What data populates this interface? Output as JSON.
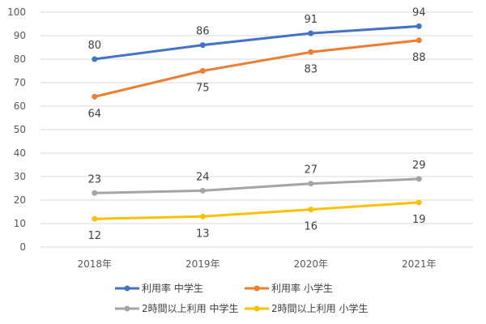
{
  "chart_data": {
    "type": "line",
    "title": "",
    "xlabel": "",
    "ylabel": "",
    "categories": [
      "2018年",
      "2019年",
      "2020年",
      "2021年"
    ],
    "ylim": [
      0,
      100
    ],
    "yticks": [
      0,
      10,
      20,
      30,
      40,
      50,
      60,
      70,
      80,
      90,
      100
    ],
    "grid": true,
    "legend_position": "bottom",
    "series": [
      {
        "name": "利用率 中学生",
        "color": "#4472C4",
        "values": [
          80,
          86,
          91,
          94
        ],
        "labels": [
          "80",
          "86",
          "91",
          "94"
        ],
        "label_pos": "above"
      },
      {
        "name": "利用率 小学生",
        "color": "#ED7D31",
        "values": [
          64,
          75,
          83,
          88
        ],
        "labels": [
          "64",
          "75",
          "83",
          "88"
        ],
        "label_pos": "below"
      },
      {
        "name": "2時間以上利用 中学生",
        "color": "#A5A5A5",
        "values": [
          23,
          24,
          27,
          29
        ],
        "labels": [
          "23",
          "24",
          "27",
          "29"
        ],
        "label_pos": "above"
      },
      {
        "name": "2時間以上利用 小学生",
        "color": "#FFC000",
        "values": [
          12,
          13,
          16,
          19
        ],
        "labels": [
          "12",
          "13",
          "16",
          "19"
        ],
        "label_pos": "below"
      }
    ]
  }
}
